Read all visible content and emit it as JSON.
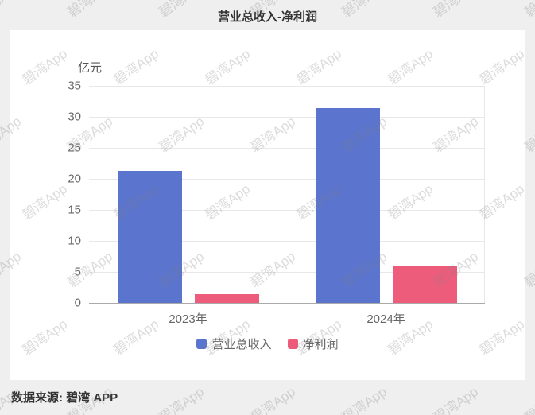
{
  "header": {
    "title": "营业总收入-净利润"
  },
  "footer": {
    "source": "数据来源: 碧湾 APP"
  },
  "watermark": {
    "text": "碧湾App"
  },
  "chart_data": {
    "type": "bar",
    "title": "营业总收入-净利润",
    "unit_label": "亿元",
    "categories": [
      "2023年",
      "2024年"
    ],
    "series": [
      {
        "name": "营业总收入",
        "color": "#5B74CE",
        "values": [
          21.3,
          31.4
        ]
      },
      {
        "name": "净利润",
        "color": "#EE5C7C",
        "values": [
          1.4,
          6.0
        ]
      }
    ],
    "ylim": [
      0,
      35
    ],
    "yticks": [
      0,
      5,
      10,
      15,
      20,
      25,
      30,
      35
    ],
    "grid": true,
    "legend_position": "bottom"
  }
}
